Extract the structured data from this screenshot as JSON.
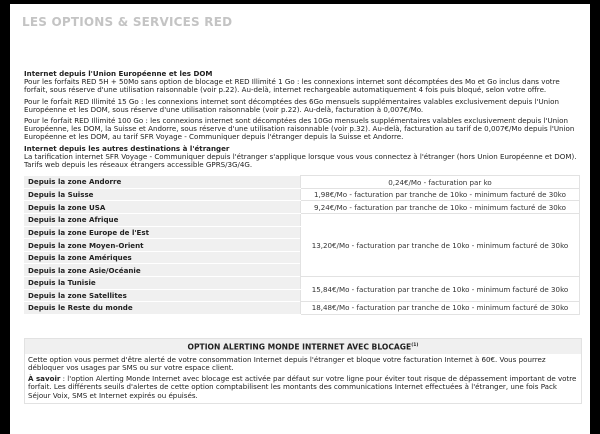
{
  "title": "LES OPTIONS & SERVICES RED",
  "eu": {
    "heading": "Internet depuis l'Union Européenne et les DOM",
    "p1": "Pour les forfaits RED 5H + 50Mo sans option de blocage et RED Illimité 1 Go : les connexions internet sont décomptées des Mo et Go inclus dans votre forfait, sous réserve d'une utilisation raisonnable (voir p.22). Au-delà, internet rechargeable automatiquement 4 fois puis bloqué, selon votre offre.",
    "p2": "Pour le forfait RED Illimité 15 Go : les connexions internet sont décomptées des 6Go mensuels supplémentaires valables exclusivement depuis l'Union Européenne et les DOM, sous réserve d'une utilisation raisonnable (voir p.22). Au-delà, facturation à 0,007€/Mo.",
    "p3": "Pour le forfait RED Illimité 100 Go : les connexions internet sont décomptées des 10Go mensuels supplémentaires valables exclusivement depuis l'Union Européenne, les DOM, la Suisse et Andorre, sous réserve d'une utilisation raisonnable (voir p.32). Au-delà, facturation au tarif de 0,007€/Mo depuis l'Union Européenne et les DOM, au tarif SFR Voyage - Communiquer depuis l'étranger depuis la Suisse et Andorre."
  },
  "abroad": {
    "heading": "Internet depuis les autres destinations à l'étranger",
    "p1": "La tarification internet SFR Voyage - Communiquer depuis l'étranger s'applique lorsque vous vous connectez à l'étranger (hors Union Européenne et DOM). Tarifs web depuis les réseaux étrangers accessible GPRS/3G/4G."
  },
  "table": {
    "zones": [
      "Depuis la zone Andorre",
      "Depuis la Suisse",
      "Depuis la zone USA",
      "Depuis la zone Afrique",
      "Depuis la zone Europe de l'Est",
      "Depuis la zone Moyen-Orient",
      "Depuis la zone Amériques",
      "Depuis la zone Asie/Océanie",
      "Depuis la Tunisie",
      "Depuis la zone Satellites",
      "Depuis le Reste du monde"
    ],
    "rates": [
      "0,24€/Mo - facturation par ko",
      "1,98€/Mo - facturation par tranche de 10ko - minimum facturé de 30ko",
      "9,24€/Mo - facturation par tranche de 10ko - minimum facturé de 30ko",
      "13,20€/Mo - facturation par tranche de 10ko - minimum facturé de 30ko",
      "15,84€/Mo - facturation par tranche de 10ko - minimum facturé de 30ko",
      "18,48€/Mo - facturation par tranche de 10ko - minimum facturé de 30ko"
    ]
  },
  "alert": {
    "heading": "OPTION ALERTING MONDE INTERNET AVEC BLOCAGE",
    "sup": "(1)",
    "p1": "Cette option vous permet d'être alerté de votre consommation Internet depuis l'étranger et bloque votre facturation Internet à 60€. Vous pourrez débloquer vos usages par SMS ou sur votre espace client.",
    "p2_bold": "À savoir",
    "p2": " : l'option Alerting Monde Internet avec blocage est activée par défaut sur votre ligne pour éviter tout risque de dépassement important de votre forfait. Les différents seuils d'alertes de cette option comptabilisent les montants des communications Internet effectuées à l'étranger, une fois Pack Séjour Voix, SMS et Internet expirés ou épuisés."
  }
}
